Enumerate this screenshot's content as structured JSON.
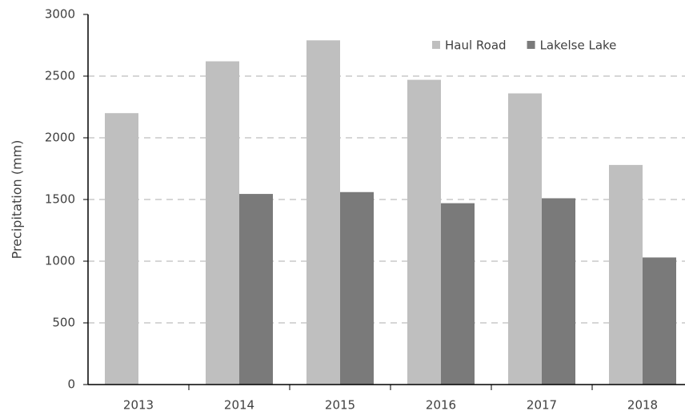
{
  "chart_data": {
    "type": "bar",
    "y_label": "Precipitation (mm)",
    "categories": [
      "2013",
      "2014",
      "2015",
      "2016",
      "2017",
      "2018"
    ],
    "series": [
      {
        "name": "Haul Road",
        "color": "#bfbfbf",
        "values": [
          2200,
          2620,
          2790,
          2470,
          2360,
          1780
        ]
      },
      {
        "name": "Lakelse Lake",
        "color": "#7a7a7a",
        "values": [
          null,
          1545,
          1560,
          1470,
          1510,
          1030
        ]
      }
    ],
    "ylim": [
      0,
      3000
    ],
    "yticks": [
      0,
      500,
      1000,
      1500,
      2000,
      2500,
      3000
    ],
    "grid": true,
    "legend": "top-right"
  }
}
